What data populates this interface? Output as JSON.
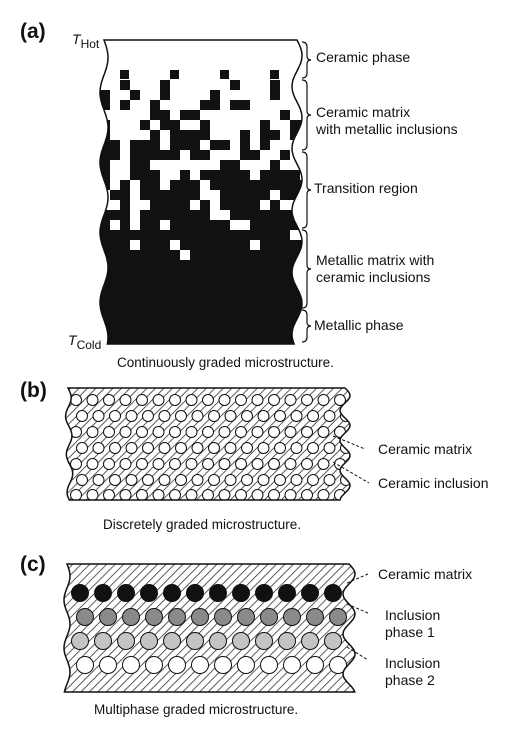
{
  "panel_a": {
    "label": "(a)",
    "t_hot": {
      "symbol": "T",
      "subscript": "Hot"
    },
    "t_cold": {
      "symbol": "T",
      "subscript": "Cold"
    },
    "annotations": [
      {
        "lines": [
          "Ceramic phase"
        ]
      },
      {
        "lines": [
          "Ceramic matrix",
          "with metallic inclusions"
        ]
      },
      {
        "lines": [
          "Transition region"
        ]
      },
      {
        "lines": [
          "Metallic matrix with",
          "ceramic inclusions"
        ]
      },
      {
        "lines": [
          "Metallic phase"
        ]
      }
    ],
    "caption": "Continuously graded microstructure."
  },
  "panel_b": {
    "label": "(b)",
    "annotations": [
      "Ceramic matrix",
      "Ceramic inclusion"
    ],
    "caption": "Discretely graded microstructure."
  },
  "panel_c": {
    "label": "(c)",
    "annotations": [
      {
        "lines": [
          "Ceramic matrix"
        ]
      },
      {
        "lines": [
          "Inclusion",
          "phase 1"
        ]
      },
      {
        "lines": [
          "Inclusion",
          "phase 2"
        ]
      }
    ],
    "caption": "Multiphase graded microstructure.",
    "colors": {
      "row1": "#111111",
      "row2": "#8a8a8a",
      "row3": "#c4c4c4",
      "row4": "#ffffff"
    }
  }
}
